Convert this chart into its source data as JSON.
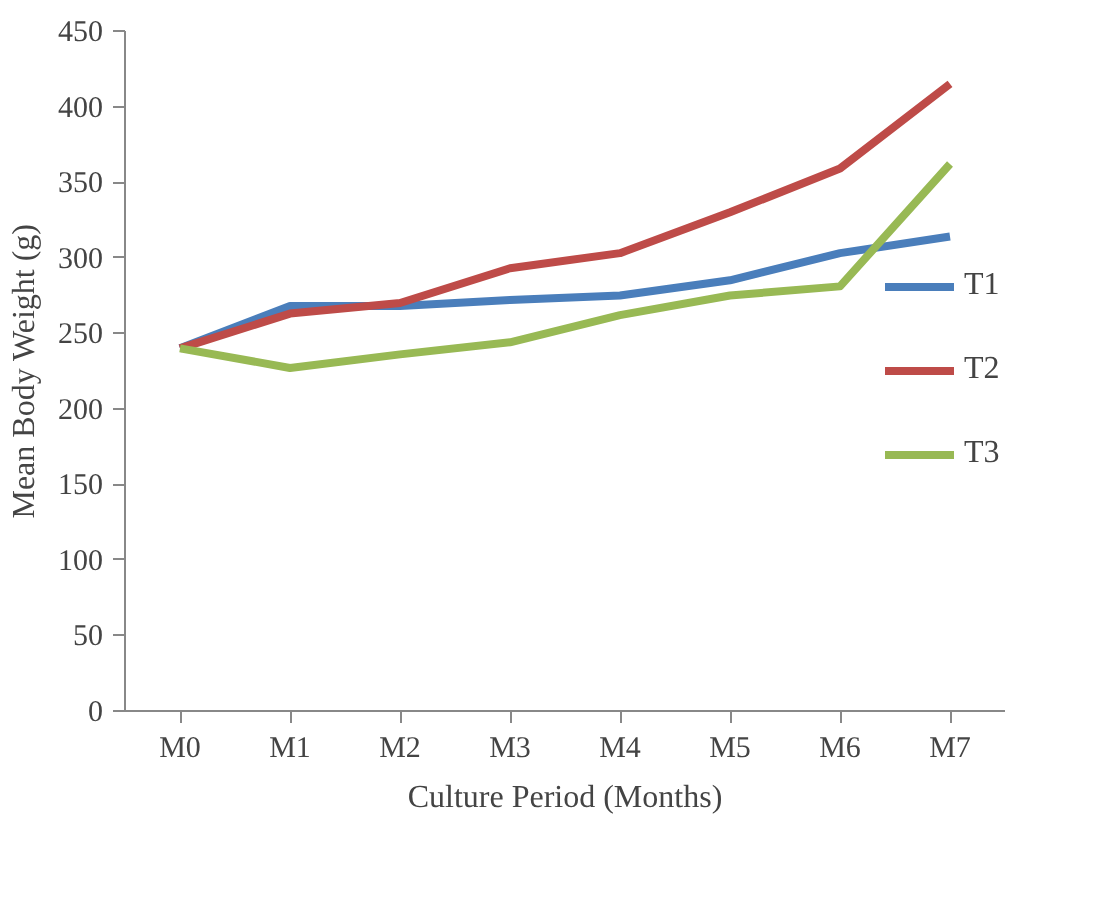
{
  "chart_data": {
    "type": "line",
    "xlabel": "Culture Period (Months)",
    "ylabel": "Mean Body Weight (g)",
    "categories": [
      "M0",
      "M1",
      "M2",
      "M3",
      "M4",
      "M5",
      "M6",
      "M7"
    ],
    "series": [
      {
        "name": "T1",
        "color": "#4a7ebb",
        "values": [
          240,
          268,
          268,
          272,
          275,
          285,
          303,
          314
        ]
      },
      {
        "name": "T2",
        "color": "#be4b48",
        "values": [
          240,
          263,
          270,
          293,
          303,
          330,
          359,
          415
        ]
      },
      {
        "name": "T3",
        "color": "#98b954",
        "values": [
          240,
          227,
          236,
          244,
          262,
          275,
          281,
          362
        ]
      }
    ],
    "ylim": [
      0,
      450
    ],
    "yticks": [
      0,
      50,
      100,
      150,
      200,
      250,
      300,
      350,
      400,
      450
    ],
    "grid": false,
    "legend": "right",
    "marker": "none"
  }
}
